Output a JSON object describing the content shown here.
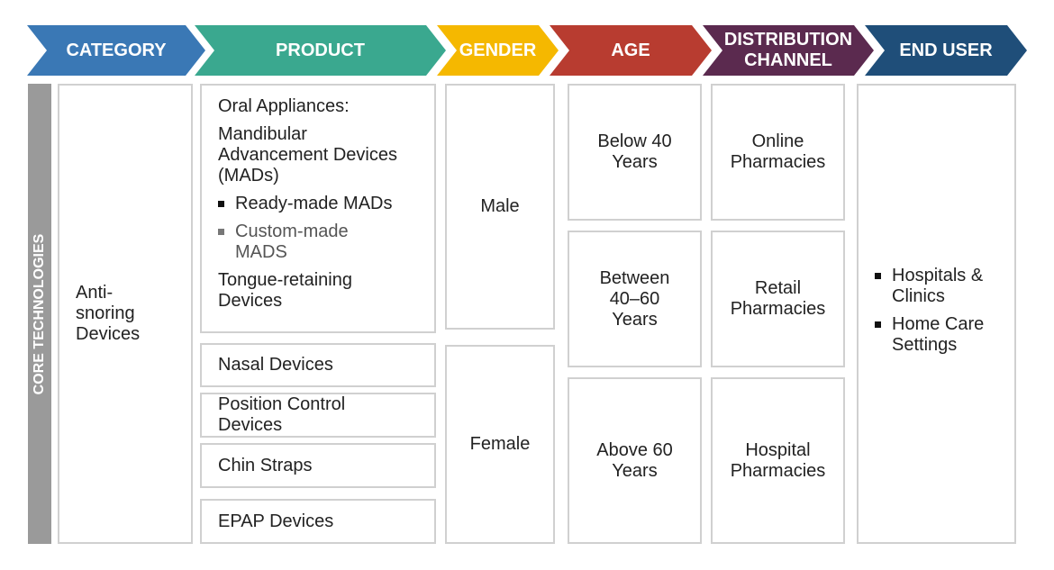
{
  "headers": [
    {
      "label": "CATEGORY",
      "color": "#3a78b5"
    },
    {
      "label": "PRODUCT",
      "color": "#3aa88f"
    },
    {
      "label": "GENDER",
      "color": "#f5b800"
    },
    {
      "label": "AGE",
      "color": "#b83c30"
    },
    {
      "label": "DISTRIBUTION CHANNEL",
      "color": "#5b2a4f"
    },
    {
      "label": "END USER",
      "color": "#1f4e79"
    }
  ],
  "side_label": "CORE TECHNOLOGIES",
  "category": "Anti-snoring Devices",
  "product": {
    "oral_title": "Oral Appliances:",
    "mad_title": "Mandibular Advancement Devices (MADs)",
    "mad_items": [
      "Ready-made MADs",
      "Custom-made MADS"
    ],
    "tongue": "Tongue-retaining Devices",
    "others": [
      "Nasal Devices",
      "Position Control Devices",
      "Chin Straps",
      "EPAP Devices"
    ]
  },
  "gender": [
    "Male",
    "Female"
  ],
  "age": [
    "Below 40 Years",
    "Between 40–60 Years",
    "Above 60 Years"
  ],
  "distribution": [
    "Online Pharmacies",
    "Retail Pharmacies",
    "Hospital Pharmacies"
  ],
  "end_user": [
    "Hospitals & Clinics",
    "Home Care Settings"
  ]
}
